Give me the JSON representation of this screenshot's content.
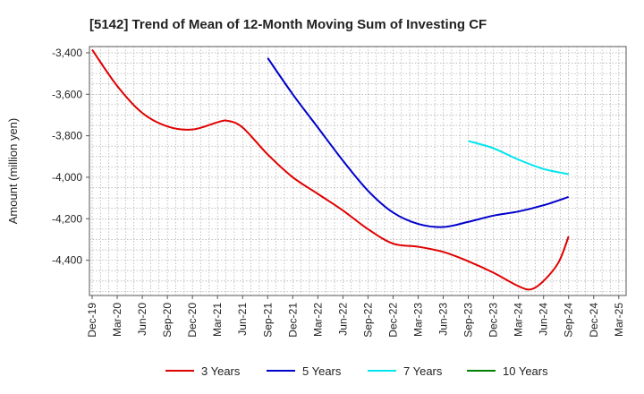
{
  "chart_data": {
    "type": "line",
    "title": "[5142]  Trend of Mean of 12-Month Moving Sum of Investing CF",
    "xlabel": "",
    "ylabel": "Amount (million yen)",
    "ylim": [
      -4570,
      -3370
    ],
    "yticks": [
      -3400,
      -3600,
      -3800,
      -4000,
      -4200,
      -4400
    ],
    "ytick_labels": [
      "-3,400",
      "-3,600",
      "-3,800",
      "-4,000",
      "-4,200",
      "-4,400"
    ],
    "x_categories": [
      "Dec-19",
      "Mar-20",
      "Jun-20",
      "Sep-20",
      "Dec-20",
      "Mar-21",
      "Jun-21",
      "Sep-21",
      "Dec-21",
      "Mar-22",
      "Jun-22",
      "Sep-22",
      "Dec-22",
      "Mar-23",
      "Jun-23",
      "Sep-23",
      "Dec-23",
      "Mar-24",
      "Jun-24",
      "Sep-24",
      "Dec-24",
      "Mar-25"
    ],
    "series": [
      {
        "name": "3 Years",
        "color": "#e00000",
        "points": [
          [
            0,
            -3385
          ],
          [
            1,
            -3560
          ],
          [
            2,
            -3690
          ],
          [
            3,
            -3755
          ],
          [
            4,
            -3770
          ],
          [
            5,
            -3735
          ],
          [
            5.4,
            -3728
          ],
          [
            6,
            -3760
          ],
          [
            7,
            -3890
          ],
          [
            8,
            -4000
          ],
          [
            9,
            -4080
          ],
          [
            10,
            -4160
          ],
          [
            11,
            -4250
          ],
          [
            12,
            -4320
          ],
          [
            13,
            -4335
          ],
          [
            14,
            -4360
          ],
          [
            15,
            -4405
          ],
          [
            16,
            -4460
          ],
          [
            17,
            -4525
          ],
          [
            17.5,
            -4540
          ],
          [
            18,
            -4500
          ],
          [
            18.6,
            -4410
          ],
          [
            19,
            -4285
          ]
        ]
      },
      {
        "name": "5 Years",
        "color": "#0000cc",
        "points": [
          [
            7,
            -3425
          ],
          [
            8,
            -3600
          ],
          [
            9,
            -3760
          ],
          [
            10,
            -3920
          ],
          [
            11,
            -4065
          ],
          [
            12,
            -4170
          ],
          [
            13,
            -4225
          ],
          [
            14,
            -4240
          ],
          [
            15,
            -4215
          ],
          [
            16,
            -4185
          ],
          [
            17,
            -4165
          ],
          [
            18,
            -4135
          ],
          [
            19,
            -4095
          ]
        ]
      },
      {
        "name": "7 Years",
        "color": "#00e5ee",
        "points": [
          [
            15,
            -3825
          ],
          [
            16,
            -3860
          ],
          [
            17,
            -3915
          ],
          [
            18,
            -3960
          ],
          [
            19,
            -3985
          ]
        ]
      },
      {
        "name": "10 Years",
        "color": "#008000",
        "points": []
      }
    ]
  }
}
